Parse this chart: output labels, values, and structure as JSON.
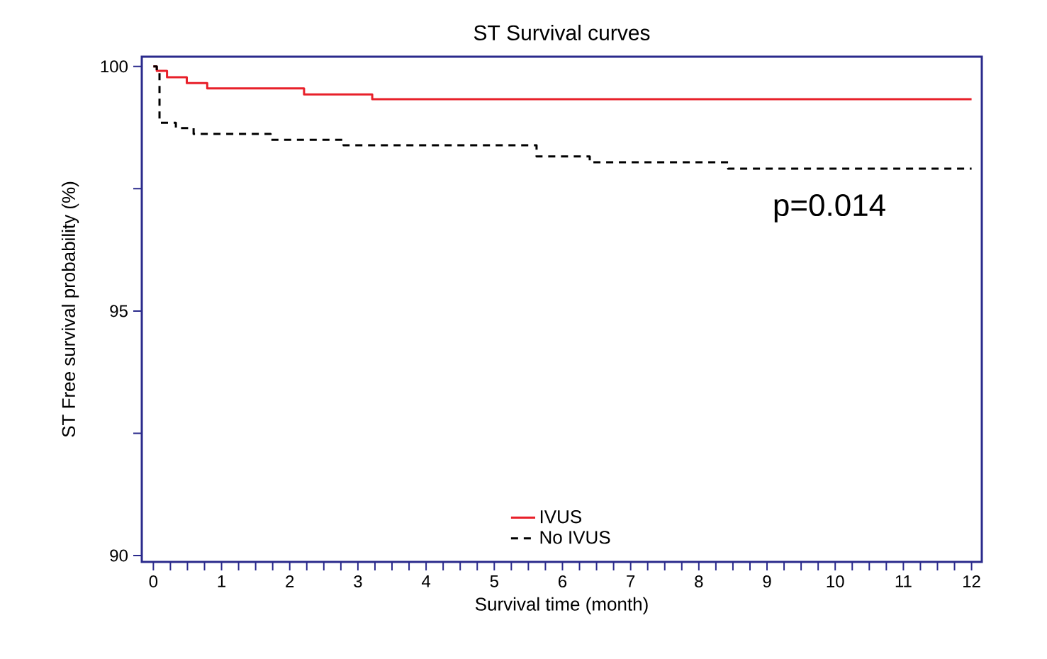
{
  "chart_data": {
    "type": "step",
    "title": "ST Survival curves",
    "xlabel": "Survival time (month)",
    "ylabel": "ST Free survival probability (%)",
    "series": [
      {
        "name": "IVUS",
        "color": "#e8202a",
        "line_style": "solid",
        "x": [
          0,
          0.05,
          0.2,
          0.49,
          0.79,
          2.21,
          3.21,
          12
        ],
        "values": [
          100,
          99.91,
          99.78,
          99.66,
          99.55,
          99.43,
          99.33,
          99.33
        ]
      },
      {
        "name": "No IVUS",
        "color": "#000000",
        "line_style": "dashed",
        "x": [
          0,
          0.05,
          0.09,
          0.33,
          0.59,
          1.72,
          2.79,
          5.62,
          6.4,
          8.43,
          12
        ],
        "values": [
          100,
          99.9,
          98.85,
          98.74,
          98.62,
          98.5,
          98.39,
          98.16,
          98.04,
          97.91,
          97.91
        ]
      }
    ],
    "xlim": [
      -0.17,
      12.15
    ],
    "ylim": [
      89.87,
      100.2
    ],
    "xticks": [
      0,
      {
        "value": 0.25,
        "label": null
      },
      {
        "value": 0.5,
        "label": null
      },
      {
        "value": 0.75,
        "label": null
      },
      1,
      {
        "value": 1.25,
        "label": null
      },
      {
        "value": 1.5,
        "label": null
      },
      {
        "value": 1.75,
        "label": null
      },
      2,
      {
        "value": 2.25,
        "label": null
      },
      {
        "value": 2.5,
        "label": null
      },
      {
        "value": 2.75,
        "label": null
      },
      3,
      {
        "value": 3.25,
        "label": null
      },
      {
        "value": 3.5,
        "label": null
      },
      {
        "value": 3.75,
        "label": null
      },
      4,
      {
        "value": 4.25,
        "label": null
      },
      {
        "value": 4.5,
        "label": null
      },
      {
        "value": 4.75,
        "label": null
      },
      5,
      {
        "value": 5.25,
        "label": null
      },
      {
        "value": 5.5,
        "label": null
      },
      {
        "value": 5.75,
        "label": null
      },
      6,
      {
        "value": 6.25,
        "label": null
      },
      {
        "value": 6.5,
        "label": null
      },
      {
        "value": 6.75,
        "label": null
      },
      7,
      {
        "value": 7.25,
        "label": null
      },
      {
        "value": 7.5,
        "label": null
      },
      {
        "value": 7.75,
        "label": null
      },
      8,
      {
        "value": 8.25,
        "label": null
      },
      {
        "value": 8.5,
        "label": null
      },
      {
        "value": 8.75,
        "label": null
      },
      9,
      {
        "value": 9.25,
        "label": null
      },
      {
        "value": 9.5,
        "label": null
      },
      {
        "value": 9.75,
        "label": null
      },
      10,
      {
        "value": 10.25,
        "label": null
      },
      {
        "value": 10.5,
        "label": null
      },
      {
        "value": 10.75,
        "label": null
      },
      11,
      {
        "value": 11.25,
        "label": null
      },
      {
        "value": 11.5,
        "label": null
      },
      {
        "value": 11.75,
        "label": null
      },
      12
    ],
    "yticks": [
      90,
      {
        "value": 92.5,
        "label": null
      },
      95,
      {
        "value": 97.5,
        "label": null
      },
      100
    ],
    "annotations": [
      "p=0.014"
    ],
    "legend": "bottom",
    "grid": false,
    "marker": "none"
  }
}
